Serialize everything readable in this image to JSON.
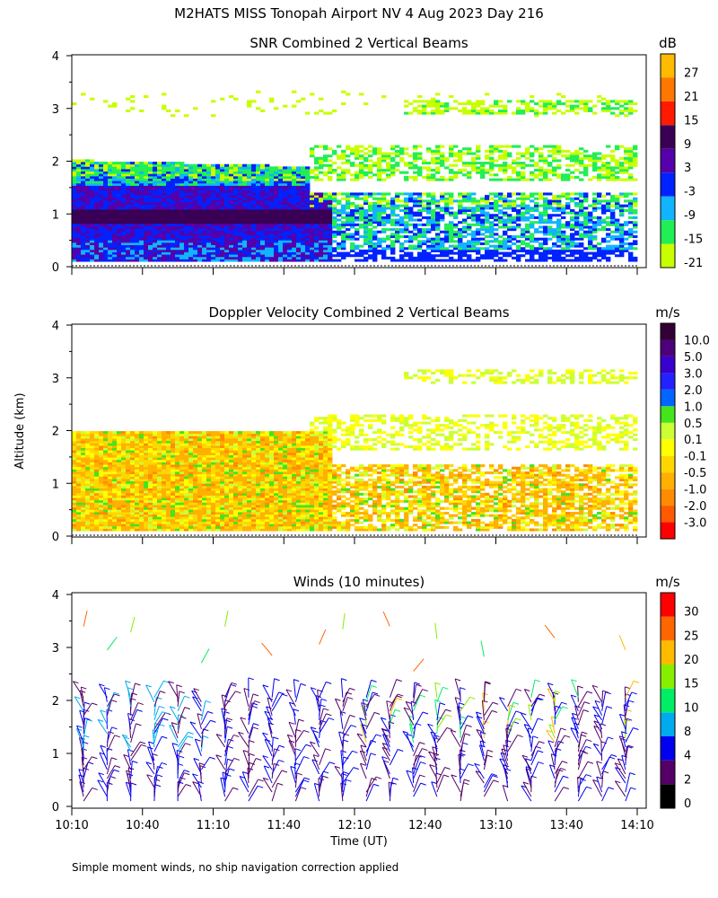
{
  "title": "M2HATS MISS Tonopah Airport NV   4 Aug 2023 Day 216",
  "footnote": "Simple moment winds, no ship navigation correction applied",
  "chart_data": [
    {
      "type": "heatmap",
      "title": "SNR Combined 2 Vertical Beams",
      "units": "dB",
      "ylabel": "Altitude (km)",
      "ylim": [
        0,
        4
      ],
      "yticks": [
        "0",
        "1",
        "2",
        "3",
        "4"
      ],
      "xlim": [
        "10:10",
        "14:10"
      ],
      "colorbar": {
        "colors": [
          "#c8ff00",
          "#22ee55",
          "#11b4ff",
          "#0022ff",
          "#5500aa",
          "#3a0055",
          "#ff1a00",
          "#ff7700",
          "#ffbb00"
        ],
        "labels": [
          "-21",
          "-15",
          "-9",
          "-3",
          "3",
          "9",
          "15",
          "21",
          "27"
        ]
      },
      "features": [
        {
          "desc": "strong SNR layer (9 dB)",
          "time_start": "10:10",
          "time_end": "11:50",
          "altitude_km": [
            0.85,
            1.0
          ]
        },
        {
          "desc": "echo layer",
          "time_start": "11:50",
          "time_end": "14:10",
          "altitude_km": [
            1.3,
            2.3
          ]
        },
        {
          "desc": "high echo layer",
          "time_start": "12:40",
          "time_end": "14:10",
          "altitude_km": [
            2.8,
            3.2
          ]
        }
      ]
    },
    {
      "type": "heatmap",
      "title": "Doppler Velocity Combined 2 Vertical Beams",
      "units": "m/s",
      "ylabel": "Altitude (km)",
      "ylim": [
        0,
        4
      ],
      "yticks": [
        "0",
        "1",
        "2",
        "3",
        "4"
      ],
      "xlim": [
        "10:10",
        "14:10"
      ],
      "colorbar": {
        "colors": [
          "#ff0000",
          "#ff5a00",
          "#ff8c00",
          "#ffb000",
          "#ffd700",
          "#ffff00",
          "#ccff33",
          "#44e51a",
          "#0066ff",
          "#2222ff",
          "#3a00cc",
          "#4d007a",
          "#330033"
        ],
        "labels": [
          "-3.0",
          "-2.0",
          "-1.0",
          "-0.5",
          "-0.1",
          "0.1",
          "0.5",
          "1.0",
          "2.0",
          "3.0",
          "5.0",
          "10.0"
        ]
      }
    },
    {
      "type": "scatter",
      "title": "Winds (10 minutes)",
      "units": "m/s",
      "xlabel": "Time (UT)",
      "ylim": [
        0,
        4
      ],
      "yticks": [
        "0",
        "1",
        "2",
        "3",
        "4"
      ],
      "xticks": [
        "10:10",
        "10:40",
        "11:10",
        "11:40",
        "12:10",
        "12:40",
        "13:10",
        "13:40",
        "14:10"
      ],
      "colorbar": {
        "colors": [
          "#000000",
          "#550066",
          "#0000ee",
          "#00aaee",
          "#00ee66",
          "#88ee00",
          "#ffbb00",
          "#ff6600",
          "#ff0000"
        ],
        "labels": [
          "0",
          "2",
          "4",
          "8",
          "10",
          "15",
          "20",
          "25",
          "30"
        ]
      }
    }
  ]
}
